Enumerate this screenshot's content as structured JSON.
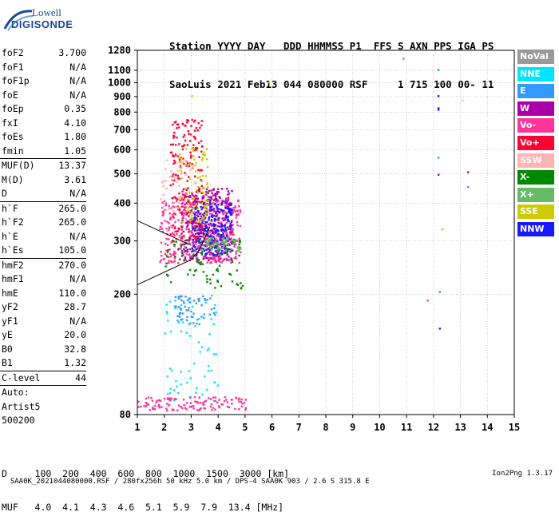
{
  "logo": {
    "top": "Lowell",
    "bottom": "DIGISONDE"
  },
  "header": {
    "line1": "Station YYYY DAY   DDD HHMMSS P1  FFS S AXN PPS IGA PS",
    "line2": "SaoLuis 2021 Feb13 044 080000 RSF     1 715 100 00- 11"
  },
  "params": {
    "groups": [
      [
        {
          "n": "foF2",
          "v": "3.700"
        },
        {
          "n": "foF1",
          "v": "N/A"
        },
        {
          "n": "foF1p",
          "v": "N/A"
        },
        {
          "n": "foE",
          "v": "N/A"
        },
        {
          "n": "foEp",
          "v": "0.35"
        },
        {
          "n": "fxI",
          "v": "4.10"
        },
        {
          "n": "foEs",
          "v": "1.80"
        },
        {
          "n": "fmin",
          "v": "1.05"
        }
      ],
      [
        {
          "n": "MUF(D)",
          "v": "13.37"
        },
        {
          "n": "M(D)",
          "v": "3.61"
        },
        {
          "n": "D",
          "v": "N/A"
        }
      ],
      [
        {
          "n": "h`F",
          "v": "265.0"
        },
        {
          "n": "h`F2",
          "v": "265.0"
        },
        {
          "n": "h`E",
          "v": "N/A"
        },
        {
          "n": "h`Es",
          "v": "105.0"
        }
      ],
      [
        {
          "n": "hmF2",
          "v": "270.0"
        },
        {
          "n": "hmF1",
          "v": "N/A"
        },
        {
          "n": "hmE",
          "v": "110.0"
        },
        {
          "n": "yF2",
          "v": "28.7"
        },
        {
          "n": "yF1",
          "v": "N/A"
        },
        {
          "n": "yE",
          "v": "20.0"
        },
        {
          "n": "B0",
          "v": "32.8"
        },
        {
          "n": "B1",
          "v": "1.32"
        }
      ],
      [
        {
          "n": "C-level",
          "v": "44"
        }
      ]
    ],
    "autoscale": [
      "Auto:",
      "Artist5",
      "500200"
    ]
  },
  "legend": [
    {
      "label": "NoVal",
      "color": "#999999"
    },
    {
      "label": "NNE",
      "color": "#00e5ff"
    },
    {
      "label": "E",
      "color": "#3399ff"
    },
    {
      "label": "W",
      "color": "#aa00aa"
    },
    {
      "label": "Vo-",
      "color": "#ff3399"
    },
    {
      "label": "Vo+",
      "color": "#ff0033"
    },
    {
      "label": "SSW",
      "color": "#ffb3b3"
    },
    {
      "label": "X-",
      "color": "#008800"
    },
    {
      "label": "X+",
      "color": "#66bb66"
    },
    {
      "label": "SSE",
      "color": "#cccc00"
    },
    {
      "label": "NNW",
      "color": "#1a1aff"
    }
  ],
  "dtable": {
    "row1": "D     100  200  400  600  800  1000  1500  3000 [km]",
    "row2": "MUF   4.0  4.1  4.3  4.6  5.1  5.9  7.9  13.4 [MHz]"
  },
  "footer": {
    "left": "SAA0K_2021044080000.RSF / 280fx256h 50 kHz 5.0 km / DPS-4 SAA0K 903 / 2.6 S 315.8 E",
    "right": "Ion2Png 1.3.17"
  },
  "chart_data": {
    "type": "scatter",
    "xlim": [
      1,
      15
    ],
    "ylim": [
      80,
      1280
    ],
    "x_ticks": [
      1,
      2,
      3,
      4,
      5,
      6,
      7,
      8,
      9,
      10,
      11,
      12,
      13,
      14,
      15
    ],
    "y_ticks": [
      80,
      200,
      300,
      400,
      500,
      600,
      700,
      800,
      900,
      1000,
      1100,
      1280
    ],
    "y_scale": "log",
    "grid": true,
    "clusters": [
      {
        "direction": "W",
        "color": "#aa00aa",
        "x": [
          2.6,
          4.5
        ],
        "y": [
          260,
          450
        ],
        "n": 420
      },
      {
        "direction": "Vo-",
        "color": "#ff3399",
        "x": [
          1.8,
          4.8
        ],
        "y": [
          255,
          420
        ],
        "n": 380
      },
      {
        "direction": "NNW",
        "color": "#1a1aff",
        "x": [
          3.0,
          4.5
        ],
        "y": [
          270,
          410
        ],
        "n": 220
      },
      {
        "direction": "Vo+",
        "color": "#ff0033",
        "x": [
          2.2,
          3.4
        ],
        "y": [
          300,
          760
        ],
        "n": 180
      },
      {
        "direction": "SSE",
        "color": "#cccc00",
        "x": [
          2.5,
          3.6
        ],
        "y": [
          330,
          620
        ],
        "n": 90
      },
      {
        "direction": "X-",
        "color": "#008800",
        "x": [
          2.0,
          4.9
        ],
        "y": [
          210,
          310
        ],
        "n": 80
      },
      {
        "direction": "X+",
        "color": "#66bb66",
        "x": [
          3.3,
          4.8
        ],
        "y": [
          280,
          310
        ],
        "n": 60
      },
      {
        "direction": "SSW",
        "color": "#ffb3b3",
        "x": [
          1.8,
          3.2
        ],
        "y": [
          300,
          560
        ],
        "n": 60
      },
      {
        "direction": "NNE",
        "color": "#00e5ff",
        "x": [
          2.0,
          4.0
        ],
        "y": [
          85,
          200
        ],
        "n": 70
      },
      {
        "direction": "E",
        "color": "#3399ff",
        "x": [
          2.3,
          3.9
        ],
        "y": [
          160,
          200
        ],
        "n": 60
      },
      {
        "direction": "Vo-",
        "color": "#ff3399",
        "x": [
          1.0,
          5.0
        ],
        "y": [
          83,
          92
        ],
        "n": 120
      }
    ],
    "scattered_points": [
      {
        "x": 10.85,
        "y": 1210,
        "color": "#3399ff"
      },
      {
        "x": 12.15,
        "y": 1110,
        "color": "#3399ff"
      },
      {
        "x": 12.15,
        "y": 1000,
        "color": "#3399ff"
      },
      {
        "x": 12.15,
        "y": 910,
        "color": "#1a1aff"
      },
      {
        "x": 12.15,
        "y": 830,
        "color": "#1a1aff"
      },
      {
        "x": 12.15,
        "y": 820,
        "color": "#1a1aff"
      },
      {
        "x": 12.15,
        "y": 570,
        "color": "#3399ff"
      },
      {
        "x": 12.15,
        "y": 500,
        "color": "#aa00aa"
      },
      {
        "x": 12.2,
        "y": 205,
        "color": "#3399ff"
      },
      {
        "x": 12.2,
        "y": 155,
        "color": "#1a1aff"
      },
      {
        "x": 13.25,
        "y": 510,
        "color": "#aa00aa"
      },
      {
        "x": 13.25,
        "y": 455,
        "color": "#3399ff"
      },
      {
        "x": 13.05,
        "y": 880,
        "color": "#ffb3b3"
      },
      {
        "x": 12.3,
        "y": 330,
        "color": "#cccc00"
      },
      {
        "x": 11.75,
        "y": 192,
        "color": "#ff3399"
      },
      {
        "x": 5.85,
        "y": 1010,
        "color": "#cccc00"
      },
      {
        "x": 3.0,
        "y": 910,
        "color": "#cccc00"
      }
    ],
    "profile_lines": [
      {
        "x": [
          1.0,
          3.0,
          3.3,
          3.7
        ],
        "y": [
          215,
          260,
          280,
          335
        ],
        "color": "#000000"
      },
      {
        "x": [
          1.0,
          3.0
        ],
        "y": [
          350,
          290
        ],
        "color": "#000000"
      }
    ]
  }
}
